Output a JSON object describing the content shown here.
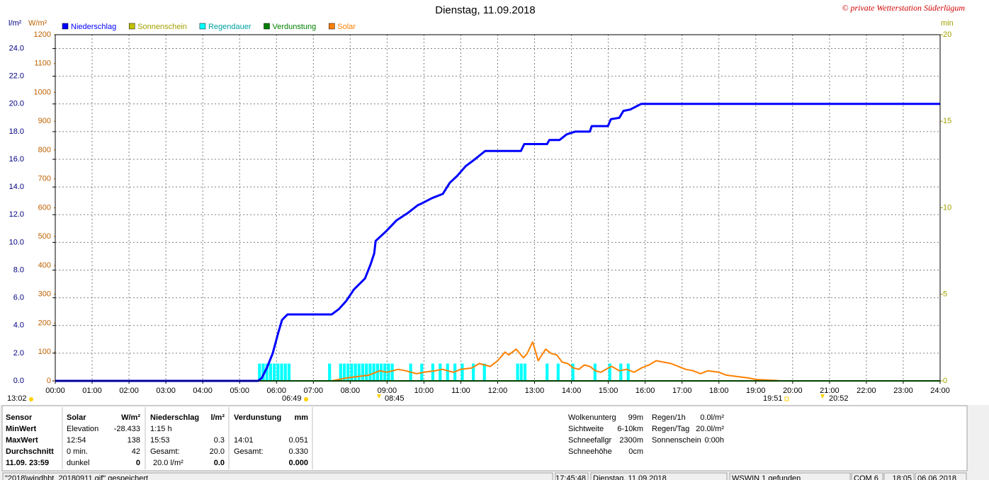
{
  "chart_data": {
    "type": "line",
    "title": "Dienstag, 11.09.2018",
    "copyright": "© private Wetterstation Süderlügum",
    "axis_labels": {
      "y": "l/m²",
      "y2": "W/m²",
      "y3": "min"
    },
    "xlim": [
      0,
      24
    ],
    "xticks": [
      {
        "value": 0,
        "label": "00:00"
      },
      {
        "value": 1,
        "label": "01:00"
      },
      {
        "value": 2,
        "label": "02:00"
      },
      {
        "value": 3,
        "label": "03:00"
      },
      {
        "value": 4,
        "label": "04:00"
      },
      {
        "value": 5,
        "label": "05:00"
      },
      {
        "value": 6,
        "label": "06:00"
      },
      {
        "value": 7,
        "label": "07:00"
      },
      {
        "value": 8,
        "label": "08:00"
      },
      {
        "value": 9,
        "label": "09:00"
      },
      {
        "value": 10,
        "label": "10:00"
      },
      {
        "value": 11,
        "label": "11:00"
      },
      {
        "value": 12,
        "label": "12:00"
      },
      {
        "value": 13,
        "label": "13:00"
      },
      {
        "value": 14,
        "label": "14:00"
      },
      {
        "value": 15,
        "label": "15:00"
      },
      {
        "value": 16,
        "label": "16:00"
      },
      {
        "value": 17,
        "label": "17:00"
      },
      {
        "value": 18,
        "label": "18:00"
      },
      {
        "value": 19,
        "label": "19:00"
      },
      {
        "value": 20,
        "label": "20:00"
      },
      {
        "value": 21,
        "label": "21:00"
      },
      {
        "value": 22,
        "label": "22:00"
      },
      {
        "value": 23,
        "label": "23:00"
      },
      {
        "value": 24,
        "label": "24:00"
      }
    ],
    "ylim": [
      0,
      25
    ],
    "yticks": [
      {
        "value": 0,
        "label": "0.0"
      },
      {
        "value": 2,
        "label": "2.0"
      },
      {
        "value": 4,
        "label": "4.0"
      },
      {
        "value": 6,
        "label": "6.0"
      },
      {
        "value": 8,
        "label": "8.0"
      },
      {
        "value": 10,
        "label": "10.0"
      },
      {
        "value": 12,
        "label": "12.0"
      },
      {
        "value": 14,
        "label": "14.0"
      },
      {
        "value": 16,
        "label": "16.0"
      },
      {
        "value": 18,
        "label": "18.0"
      },
      {
        "value": 20,
        "label": "20.0"
      },
      {
        "value": 22,
        "label": "22.0"
      },
      {
        "value": 24,
        "label": "24.0"
      }
    ],
    "y2lim": [
      0,
      1200
    ],
    "y2ticks": [
      0,
      100,
      200,
      300,
      400,
      500,
      600,
      700,
      800,
      900,
      1000,
      1100,
      1200
    ],
    "y3lim": [
      0,
      20
    ],
    "y3ticks": [
      0,
      5,
      10,
      15,
      20
    ],
    "grid": true,
    "series": [
      {
        "name": "Niederschlag",
        "color": "#0000ff",
        "kind": "line",
        "x": [
          0,
          5.5,
          5.6,
          5.75,
          5.9,
          6.05,
          6.15,
          6.3,
          7.5,
          7.7,
          7.9,
          8.1,
          8.4,
          8.55,
          8.65,
          8.69,
          8.97,
          9.26,
          9.55,
          9.84,
          9.93,
          10.22,
          10.51,
          10.7,
          10.9,
          11.13,
          11.38,
          11.66,
          12.63,
          12.72,
          13.34,
          13.4,
          13.68,
          13.87,
          14.1,
          14.5,
          14.55,
          14.99,
          15.07,
          15.3,
          15.41,
          15.6,
          15.89,
          24
        ],
        "values": [
          0,
          0,
          0.2,
          1.0,
          2.0,
          3.5,
          4.4,
          4.8,
          4.8,
          5.2,
          5.8,
          6.6,
          7.4,
          8.4,
          9.2,
          10.1,
          10.8,
          11.6,
          12.1,
          12.7,
          12.8,
          13.2,
          13.5,
          14.3,
          14.8,
          15.5,
          16.0,
          16.6,
          16.6,
          17.1,
          17.1,
          17.4,
          17.4,
          17.8,
          18.0,
          18.0,
          18.4,
          18.4,
          18.9,
          19.0,
          19.5,
          19.6,
          20.0,
          20.0
        ]
      },
      {
        "name": "Sonnenschein",
        "color": "#c0c000",
        "kind": "line",
        "x": [
          0,
          24
        ],
        "values": [
          0,
          0
        ]
      },
      {
        "name": "Regendauer",
        "color": "#00ffff",
        "kind": "bar",
        "axis": "y3",
        "x": [
          5.5,
          5.6,
          5.7,
          5.8,
          5.9,
          6.0,
          6.1,
          6.2,
          6.3,
          7.4,
          7.7,
          7.8,
          7.9,
          8.0,
          8.1,
          8.2,
          8.3,
          8.4,
          8.5,
          8.6,
          8.7,
          8.8,
          8.9,
          9.0,
          9.1,
          9.6,
          9.9,
          10.2,
          10.4,
          10.6,
          10.8,
          11.0,
          11.3,
          11.6,
          12.5,
          12.6,
          12.7,
          13.3,
          13.6,
          14.0,
          14.6,
          15.0,
          15.3,
          15.5
        ],
        "values": [
          1,
          1,
          1,
          1,
          1,
          1,
          1,
          1,
          1,
          1,
          1,
          1,
          1,
          1,
          1,
          1,
          1,
          1,
          1,
          1,
          1,
          1,
          1,
          1,
          1,
          1,
          1,
          1,
          1,
          1,
          1,
          1,
          1,
          1,
          1,
          1,
          1,
          1,
          1,
          1,
          1,
          1,
          1,
          1
        ]
      },
      {
        "name": "Verdunstung",
        "color": "#008000",
        "kind": "line",
        "x": [
          0,
          24
        ],
        "values": [
          0,
          0
        ]
      },
      {
        "name": "Solar",
        "color": "#ff8000",
        "kind": "line",
        "axis": "y2",
        "x": [
          0,
          7.5,
          7.9,
          8.2,
          8.5,
          8.8,
          9.0,
          9.3,
          9.5,
          9.8,
          10.0,
          10.3,
          10.5,
          10.8,
          11.0,
          11.3,
          11.5,
          11.8,
          12.0,
          12.2,
          12.3,
          12.5,
          12.7,
          12.8,
          12.95,
          13.1,
          13.3,
          13.45,
          13.6,
          13.75,
          13.9,
          14.05,
          14.2,
          14.35,
          14.5,
          14.65,
          14.8,
          15.0,
          15.1,
          15.3,
          15.5,
          15.7,
          15.9,
          16.1,
          16.3,
          16.5,
          16.7,
          16.9,
          17.1,
          17.3,
          17.5,
          17.7,
          18.0,
          18.2,
          18.5,
          18.8,
          19.0,
          19.3,
          19.5,
          19.7,
          24
        ],
        "values": [
          0,
          0,
          10,
          15,
          20,
          35,
          30,
          40,
          35,
          25,
          30,
          35,
          40,
          30,
          40,
          45,
          60,
          50,
          70,
          100,
          90,
          110,
          80,
          95,
          135,
          70,
          110,
          95,
          90,
          65,
          60,
          45,
          40,
          55,
          50,
          35,
          30,
          45,
          50,
          35,
          40,
          30,
          45,
          55,
          70,
          65,
          60,
          50,
          40,
          35,
          25,
          35,
          30,
          20,
          15,
          10,
          5,
          3,
          2,
          0,
          0
        ]
      }
    ],
    "sun_times": [
      "13:02",
      "06:49",
      "08:45",
      "19:51",
      "20:52"
    ]
  },
  "info_panel": {
    "sensor_column": [
      "Sensor",
      "MinWert",
      "MaxWert",
      "Durchschnitt",
      "11.09. 23:59"
    ],
    "tables": [
      {
        "header": [
          "Solar",
          "W/m²"
        ],
        "rows": [
          {
            "label": "Elevation",
            "value": "-28.433"
          },
          {
            "label": "12:54",
            "value": "138"
          },
          {
            "label": "0 min.",
            "value": "42"
          },
          {
            "label": "dunkel",
            "value": "0"
          }
        ]
      },
      {
        "header": [
          "Niederschlag",
          "l/m²"
        ],
        "rows": [
          {
            "label": "1:15 h"
          },
          {
            "label": "15:53",
            "value": "0.3"
          },
          {
            "label": "Gesamt:",
            "value": "20.0"
          },
          {
            "label": "20.0 l/m²",
            "value": "0.0"
          }
        ]
      },
      {
        "header": [
          "Verdunstung",
          "mm"
        ],
        "rows": [
          {},
          {
            "label": "14:01",
            "value": "0.051"
          },
          {
            "label": "Gesamt:",
            "value": "0.330"
          },
          {
            "value": "0.000"
          }
        ]
      }
    ],
    "conditions": [
      {
        "label": "Wolkenunterg",
        "value": "99m"
      },
      {
        "label": "Sichtweite",
        "value": "6-10km"
      },
      {
        "label": "Schneefallgr",
        "value": "2300m"
      },
      {
        "label": "Schneehöhe",
        "value": "0cm"
      }
    ],
    "rain": [
      {
        "label": "Regen/1h",
        "value": "0.0l/m²"
      },
      {
        "label": "Regen/Tag",
        "value": "20.0l/m²"
      },
      {
        "label": "Sonnenschein",
        "value": "0:00h"
      }
    ]
  },
  "status_bar": [
    "\"2018\\windhbt_20180911.gif\" gespeichert",
    "17:45:48",
    "Dienstag, 11.09.2018",
    "WSWIN 1 gefunden",
    "COM 6",
    "18:05",
    "06.06.2018"
  ]
}
